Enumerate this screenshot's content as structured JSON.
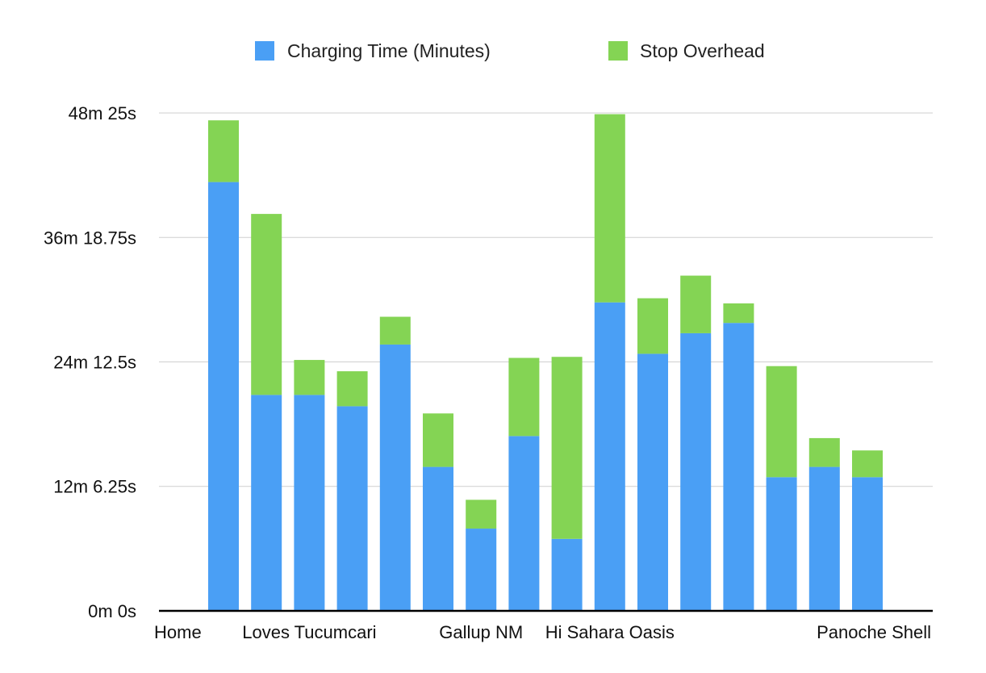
{
  "chart_data": {
    "type": "bar",
    "stacked": true,
    "title": "",
    "xlabel": "",
    "ylabel": "",
    "y_unit": "minutes",
    "ylim": [
      0,
      48.4167
    ],
    "y_ticks": [
      0,
      12.1042,
      24.2083,
      36.3125,
      48.4167
    ],
    "y_tick_labels": [
      "0m 0s",
      "12m 6.25s",
      "24m 12.5s",
      "36m 18.75s",
      "48m 25s"
    ],
    "grid": true,
    "legend_position": "top",
    "categories": [
      "Home",
      "",
      "Loves Tucumcari",
      "",
      "",
      "",
      "Gallup NM",
      "",
      "",
      "Hi Sahara Oasis",
      "",
      "",
      "",
      "Panoche Shell",
      "",
      ""
    ],
    "series": [
      {
        "name": "Charging Time (Minutes)",
        "color": "#4a9ff5",
        "values": [
          41.7,
          21.0,
          21.0,
          19.9,
          25.9,
          14.0,
          8.0,
          17.0,
          7.0,
          30.0,
          25.0,
          27.0,
          28.0,
          13.0,
          14.0,
          13.0
        ]
      },
      {
        "name": "Stop Overhead",
        "color": "#84d454",
        "values": [
          6.0,
          17.6,
          3.4,
          3.4,
          2.7,
          5.2,
          2.8,
          7.6,
          17.7,
          18.3,
          5.4,
          5.6,
          1.9,
          10.8,
          2.8,
          2.6
        ]
      }
    ]
  }
}
